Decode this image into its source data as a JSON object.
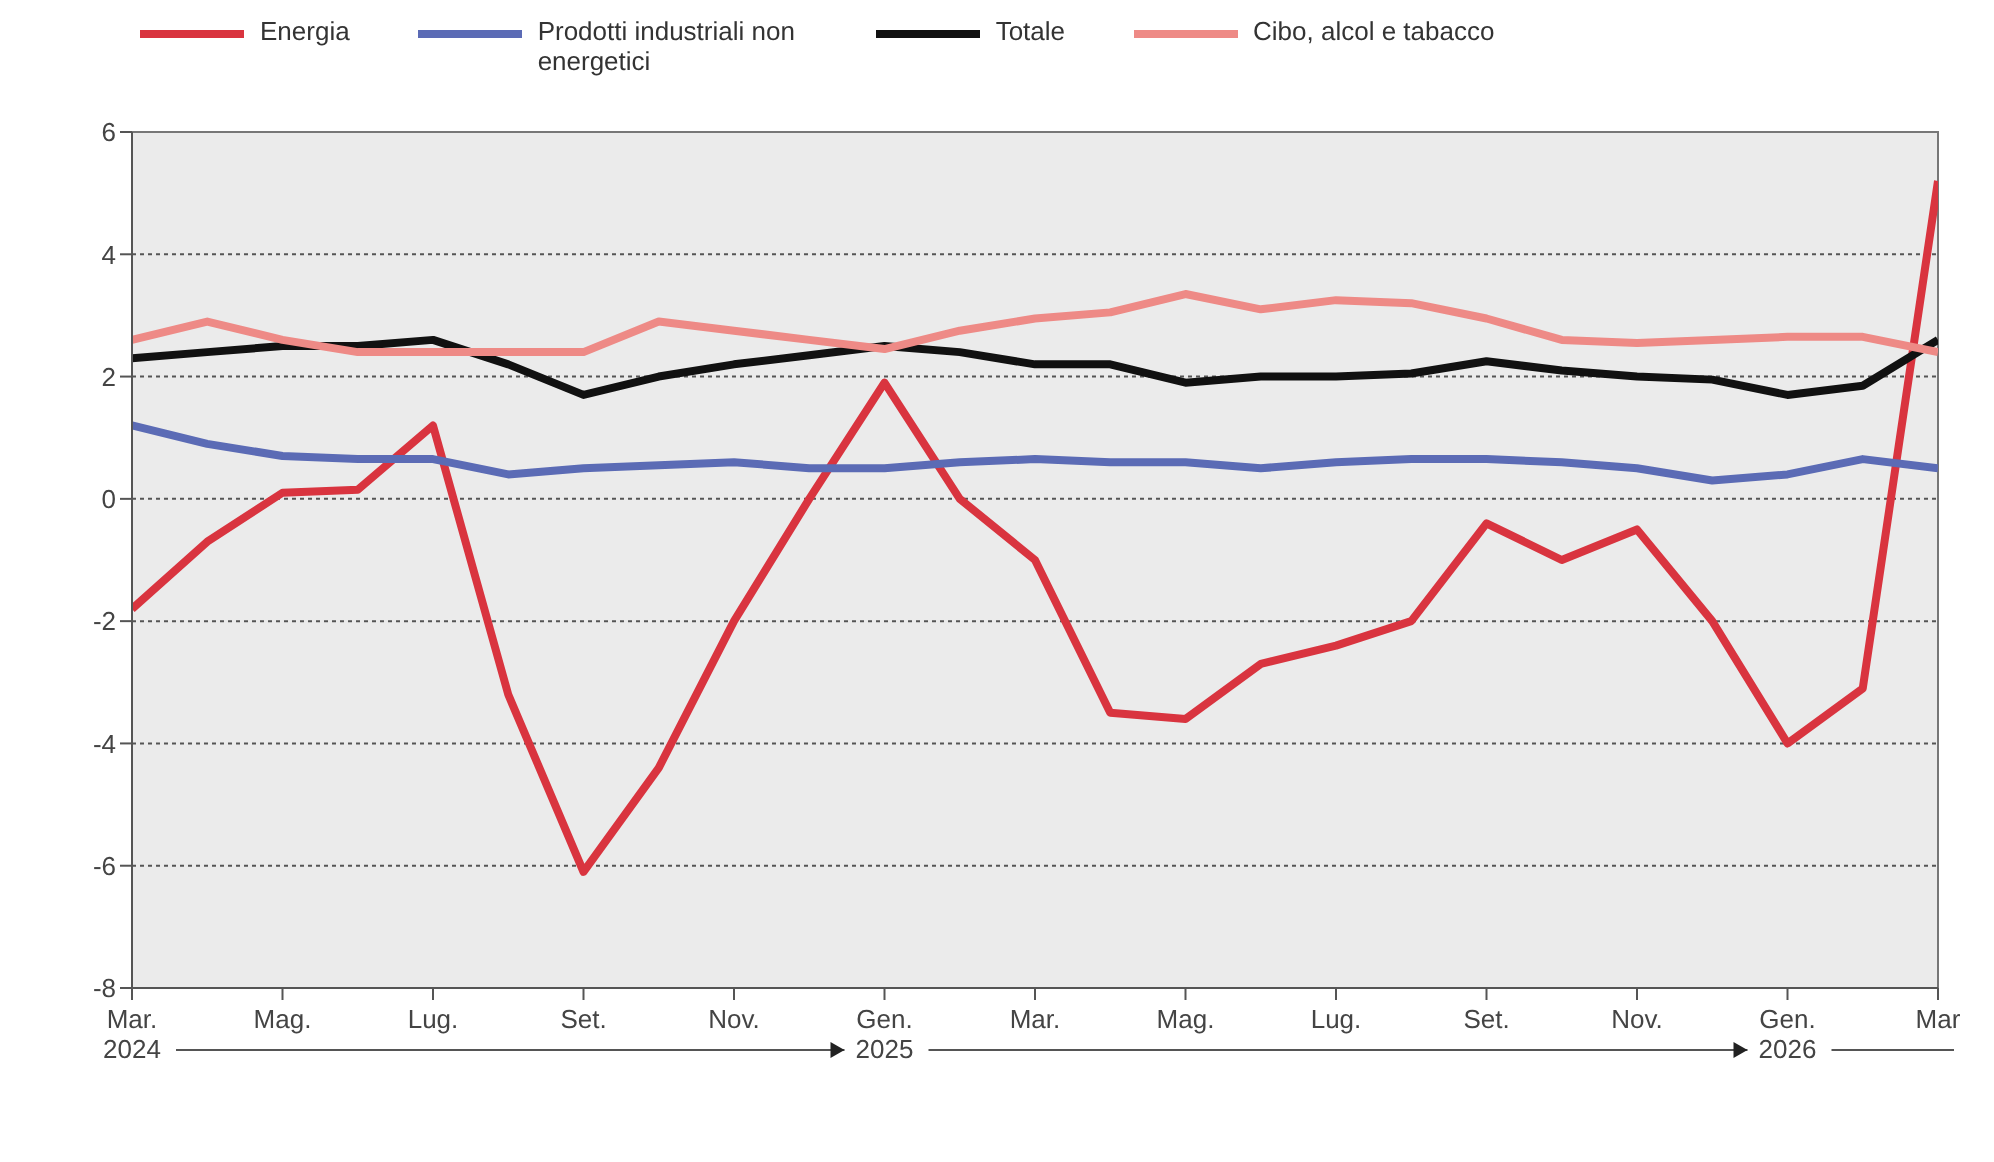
{
  "chart_data": {
    "type": "line",
    "categories": [
      "Mar. 2024",
      null,
      "Mag.",
      null,
      "Lug.",
      null,
      "Set.",
      null,
      "Nov.",
      null,
      "Gen. 2025",
      null,
      "Mar.",
      null,
      "Mag.",
      null,
      "Lug.",
      null,
      "Set.",
      null,
      "Nov.",
      null,
      "Gen. 2026",
      null,
      "Mar"
    ],
    "series": [
      {
        "name": "Energia",
        "color": "#d9343f",
        "values": [
          -1.8,
          -0.7,
          0.1,
          0.15,
          1.2,
          -3.2,
          -6.1,
          -4.4,
          -2.0,
          0.0,
          1.9,
          0.0,
          -1.0,
          -3.5,
          -3.6,
          -2.7,
          -2.4,
          -2.0,
          -0.4,
          -1.0,
          -0.5,
          -2.0,
          -4.0,
          -3.1,
          5.2
        ]
      },
      {
        "name": "Prodotti industriali non energetici",
        "color": "#5b6bb5",
        "values": [
          1.2,
          0.9,
          0.7,
          0.65,
          0.65,
          0.4,
          0.5,
          0.55,
          0.6,
          0.5,
          0.5,
          0.6,
          0.65,
          0.6,
          0.6,
          0.5,
          0.6,
          0.65,
          0.65,
          0.6,
          0.5,
          0.3,
          0.4,
          0.65,
          0.5
        ]
      },
      {
        "name": "Totale",
        "color": "#111111",
        "values": [
          2.3,
          2.4,
          2.5,
          2.5,
          2.6,
          2.2,
          1.7,
          2.0,
          2.2,
          2.35,
          2.5,
          2.4,
          2.2,
          2.2,
          1.9,
          2.0,
          2.0,
          2.05,
          2.25,
          2.1,
          2.0,
          1.95,
          1.7,
          1.85,
          2.6
        ]
      },
      {
        "name": "Cibo, alcol e tabacco",
        "color": "#ee8a86",
        "values": [
          2.6,
          2.9,
          2.6,
          2.4,
          2.4,
          2.4,
          2.4,
          2.9,
          2.75,
          2.6,
          2.45,
          2.75,
          2.95,
          3.05,
          3.35,
          3.1,
          3.25,
          3.2,
          2.95,
          2.6,
          2.55,
          2.6,
          2.65,
          2.65,
          2.4
        ]
      }
    ],
    "ylim": [
      -8,
      6
    ],
    "yticks": [
      -8,
      -6,
      -4,
      -2,
      0,
      2,
      4,
      6
    ],
    "grid": "y",
    "legend": "top",
    "marker": "none",
    "line_style": "solid"
  }
}
